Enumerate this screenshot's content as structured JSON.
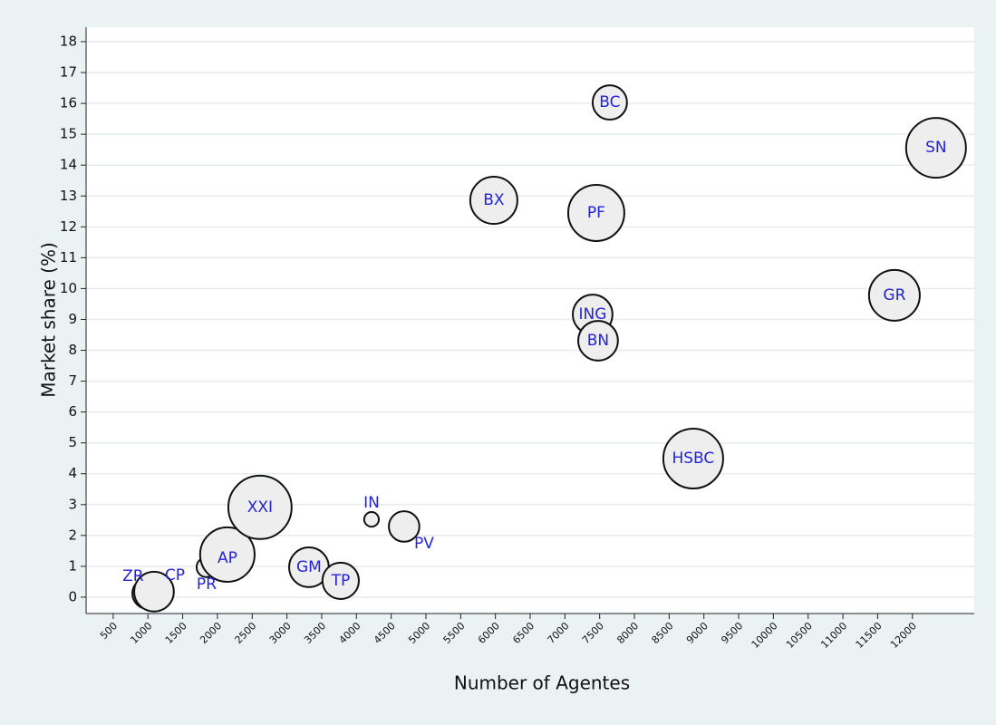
{
  "chart_data": {
    "type": "scatter",
    "x_label": "Number of Agentes",
    "y_label": "Market share (%)",
    "labels": [
      "ZR",
      "CP",
      "PR",
      "AP",
      "XXI",
      "GM",
      "TP",
      "IN",
      "PV",
      "BX",
      "BC",
      "PF",
      "ING",
      "BN",
      "HSBC",
      "GR",
      "SN"
    ],
    "x": [
      995,
      1087,
      1843,
      2143,
      2612,
      3317,
      3773,
      4217,
      4686,
      5977,
      7646,
      7451,
      7399,
      7477,
      8846,
      11741,
      12340
    ],
    "values": [
      0.12,
      0.18,
      0.97,
      1.38,
      2.91,
      0.97,
      0.53,
      2.52,
      2.29,
      12.86,
      16.03,
      12.45,
      9.16,
      8.31,
      4.49,
      9.78,
      14.56
    ],
    "sizes": [
      26,
      44,
      11,
      83,
      112,
      44,
      37,
      6,
      26,
      62,
      33,
      88,
      44,
      44,
      100,
      72,
      100
    ],
    "marker_color": "#eeeeee",
    "label_color": "#2323d8",
    "xlim": [
      110,
      12890
    ],
    "ylim": [
      -0.53,
      18.47
    ],
    "xticks": [
      500,
      1000,
      1500,
      2000,
      2500,
      3000,
      3500,
      4000,
      4500,
      5000,
      5500,
      6000,
      6500,
      7000,
      7500,
      8000,
      8500,
      9000,
      9500,
      10000,
      10500,
      11000,
      11500,
      12000
    ],
    "yticks": [
      0,
      1,
      2,
      3,
      4,
      5,
      6,
      7,
      8,
      9,
      10,
      11,
      12,
      13,
      14,
      15,
      16,
      17,
      18
    ],
    "grid": true
  }
}
